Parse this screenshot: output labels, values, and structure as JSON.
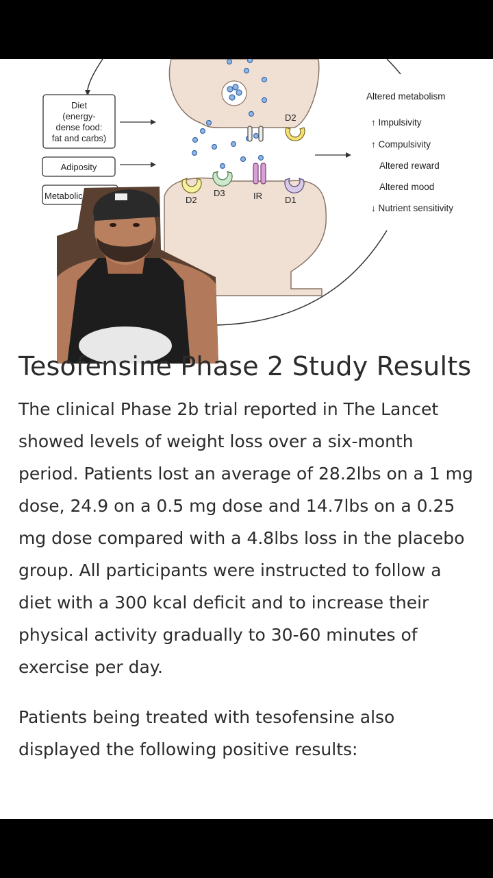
{
  "diagram": {
    "factors": [
      "Diet",
      "(energy-",
      "dense food:",
      "fat and carbs)",
      "Adiposity",
      "Metabolic chan"
    ],
    "receptors": [
      "D2",
      "D3",
      "IR",
      "D1",
      "D2"
    ],
    "effects": [
      "Altered metabolism",
      "↑ Impulsivity",
      "↑ Compulsivity",
      "Altered reward",
      "Altered mood",
      "↓ Nutrient sensitivity"
    ]
  },
  "overlay": {
    "icon": "person-cutout-avatar"
  },
  "article": {
    "title": "Tesofensine Phase 2 Study Results",
    "paragraphs": [
      "The clinical Phase 2b trial reported in The Lancet showed levels of weight loss over a six-month period. Patients lost an average of 28.2lbs on a 1 mg dose, 24.9 on a 0.5 mg dose and 14.7lbs on a 0.25 mg dose compared with a 4.8lbs loss in the placebo group. All participants were instructed to follow a diet with a 300 kcal deficit and to increase their physical activity gradually to 30-60 minutes of exercise per day.",
      "Patients being treated with tesofensine also displayed the following positive results:"
    ]
  },
  "colors": {
    "background": "#000000",
    "page": "#ffffff",
    "neuron": "#f0e0d4",
    "text": "#2b2b2b"
  }
}
